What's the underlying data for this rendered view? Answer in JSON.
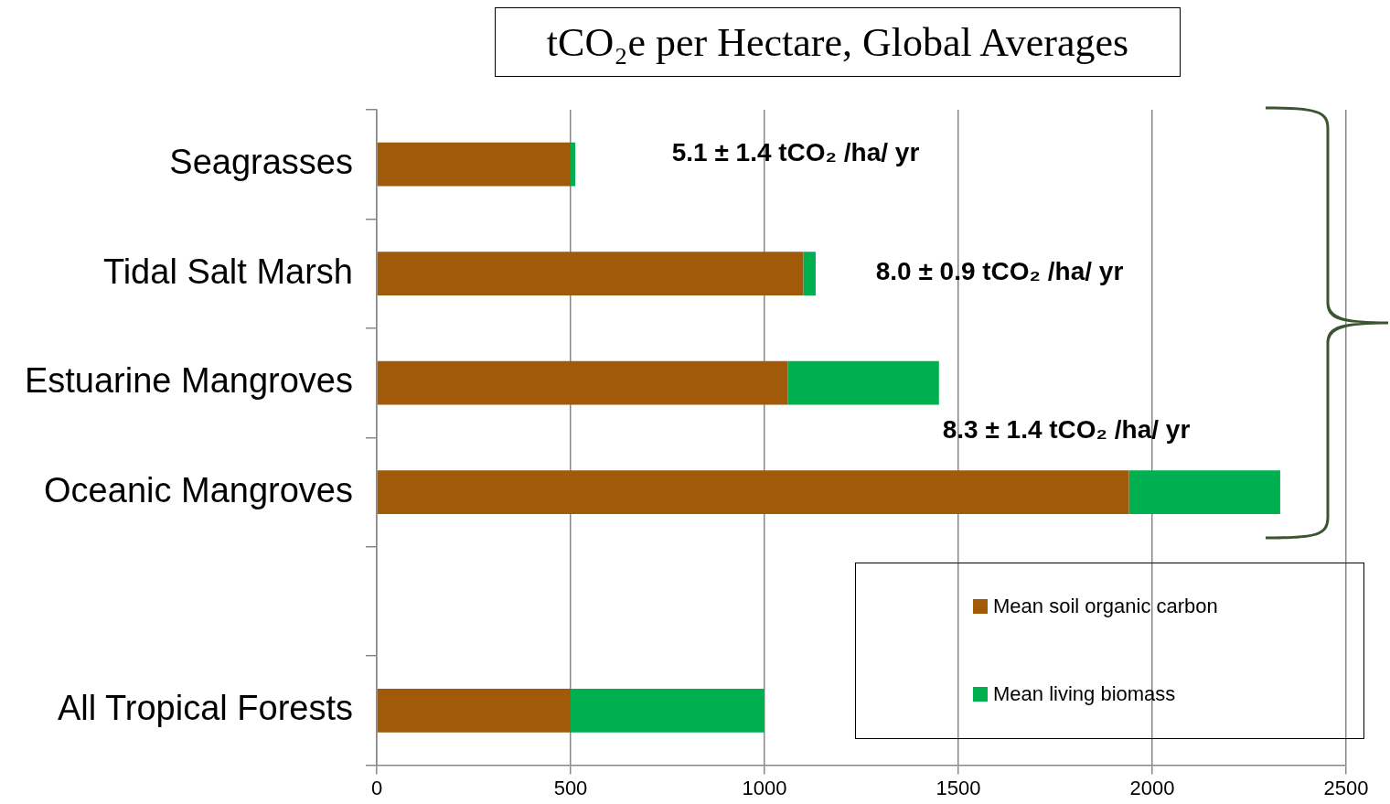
{
  "chart_data": {
    "type": "bar",
    "orientation": "horizontal",
    "stacked": true,
    "title": "tCO₂e per Hectare, Global Averages",
    "categories": [
      "Seagrasses",
      "Tidal Salt Marsh",
      "Estuarine Mangroves",
      "Oceanic Mangroves",
      null,
      "All Tropical Forests"
    ],
    "series": [
      {
        "name": "Mean soil organic carbon",
        "color": "#a05a0a",
        "values": [
          500,
          1100,
          1060,
          1940,
          null,
          500
        ]
      },
      {
        "name": "Mean living biomass",
        "color": "#00b050",
        "values": [
          12,
          32,
          390,
          390,
          null,
          500
        ]
      }
    ],
    "xlim": [
      0,
      2500
    ],
    "xticks": [
      0,
      500,
      1000,
      1500,
      2000,
      2500
    ],
    "grid": "x",
    "legend": "bottom right",
    "annotations": [
      "5.1 ± 1.4 tCO₂ /ha/ yr",
      "8.0 ± 0.9 tCO₂ /ha/ yr",
      "8.3 ± 1.4 tCO₂ /ha/ yr"
    ]
  }
}
